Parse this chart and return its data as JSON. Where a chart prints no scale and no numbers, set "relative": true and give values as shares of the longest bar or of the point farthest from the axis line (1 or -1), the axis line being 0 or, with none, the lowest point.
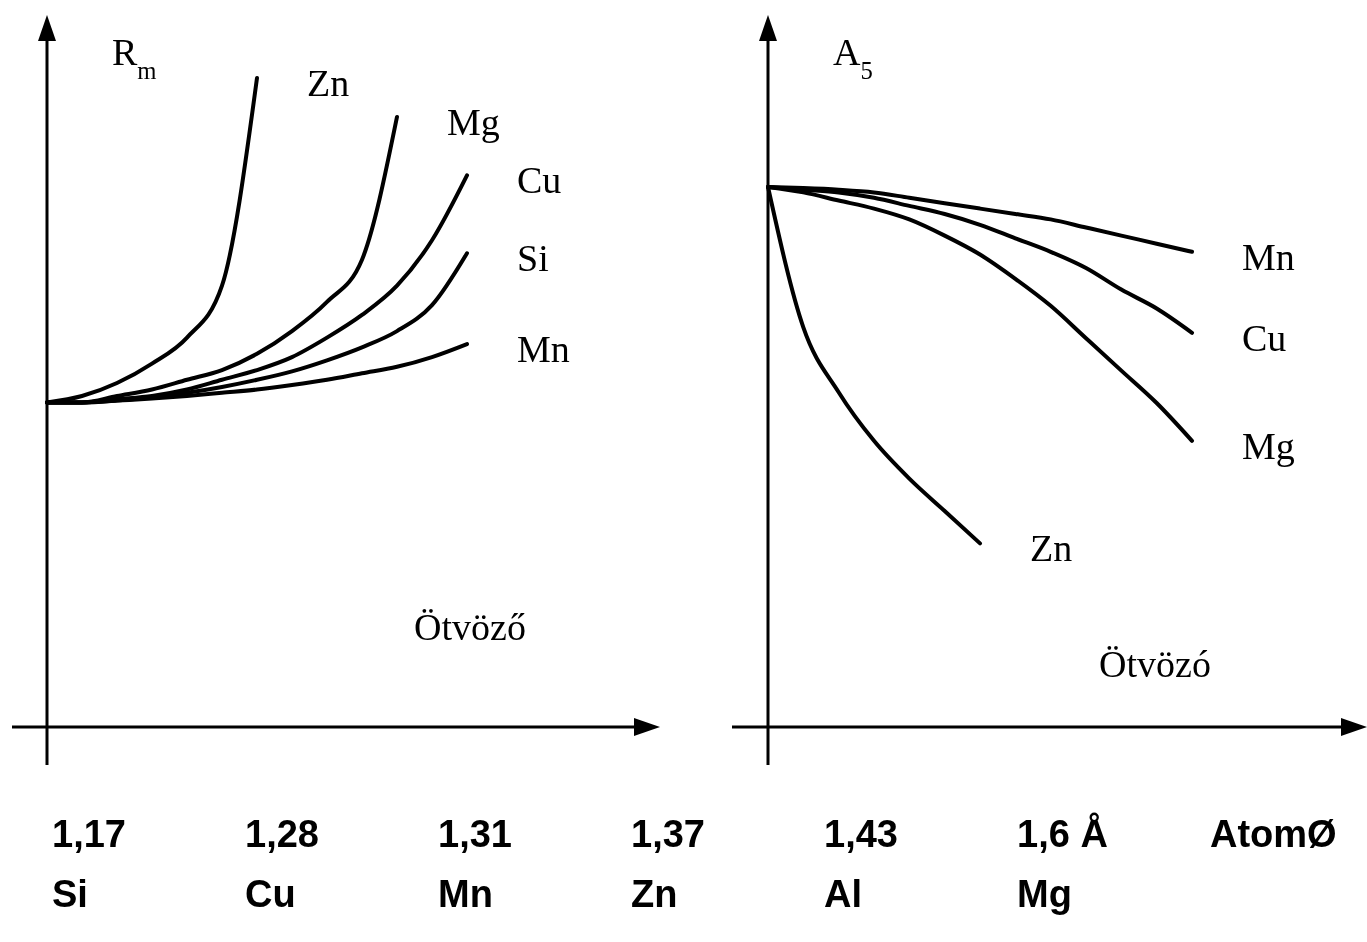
{
  "chart_data": [
    {
      "type": "line",
      "relative": true,
      "ylabel": "R$_{m}$",
      "xlabel": "Ötvöző",
      "categories": [
        null,
        null,
        null,
        null,
        null,
        null,
        null,
        null,
        null,
        null,
        null,
        null,
        null
      ],
      "series": [
        {
          "name": "Zn",
          "color": "#000000",
          "values": [
            0.5,
            0.51,
            0.53,
            0.56,
            0.6,
            0.68,
            1.0,
            null,
            null,
            null,
            null,
            null,
            null
          ]
        },
        {
          "name": "Mg",
          "color": "#000000",
          "values": [
            0.5,
            0.5,
            0.51,
            0.52,
            0.535,
            0.55,
            0.575,
            0.61,
            0.655,
            0.72,
            0.94,
            null,
            null
          ]
        },
        {
          "name": "Cu",
          "color": "#000000",
          "values": [
            0.5,
            0.5,
            0.505,
            0.51,
            0.52,
            0.535,
            0.55,
            0.57,
            0.6,
            0.635,
            0.68,
            0.75,
            0.85
          ]
        },
        {
          "name": "Si",
          "color": "#000000",
          "values": [
            0.5,
            0.5,
            0.503,
            0.508,
            0.515,
            0.524,
            0.535,
            0.548,
            0.565,
            0.585,
            0.61,
            0.65,
            0.73
          ]
        },
        {
          "name": "Mn",
          "color": "#000000",
          "values": [
            0.5,
            0.5,
            0.503,
            0.506,
            0.51,
            0.515,
            0.52,
            0.527,
            0.535,
            0.545,
            0.555,
            0.57,
            0.59
          ]
        }
      ],
      "annotations": [
        "1,17",
        "1,28",
        "1,31",
        "1,37",
        "1,43",
        "1,6 Å",
        "AtomØ",
        "Si",
        "Cu",
        "Mn",
        "Zn",
        "Al",
        "Mg"
      ]
    },
    {
      "type": "line",
      "relative": true,
      "ylabel": "A$_{5}$",
      "xlabel": "Ötvözó",
      "categories": [
        null,
        null,
        null,
        null,
        null,
        null,
        null,
        null,
        null,
        null,
        null,
        null,
        null
      ],
      "series": [
        {
          "name": "Mn",
          "color": "#000000",
          "values": [
            1.0,
            0.998,
            0.995,
            0.99,
            0.98,
            0.97,
            0.96,
            0.95,
            0.94,
            0.925,
            0.91,
            0.895,
            0.88
          ]
        },
        {
          "name": "Cu",
          "color": "#000000",
          "values": [
            1.0,
            0.995,
            0.99,
            0.98,
            0.965,
            0.95,
            0.93,
            0.905,
            0.88,
            0.85,
            0.81,
            0.775,
            0.73
          ]
        },
        {
          "name": "Mg",
          "color": "#000000",
          "values": [
            1.0,
            0.99,
            0.975,
            0.96,
            0.94,
            0.91,
            0.875,
            0.83,
            0.78,
            0.72,
            0.66,
            0.6,
            0.53
          ]
        },
        {
          "name": "Zn",
          "color": "#000000",
          "values": [
            1.0,
            0.74,
            0.62,
            0.53,
            0.46,
            0.4,
            0.34,
            null,
            null,
            null,
            null,
            null,
            null
          ]
        }
      ]
    }
  ]
}
